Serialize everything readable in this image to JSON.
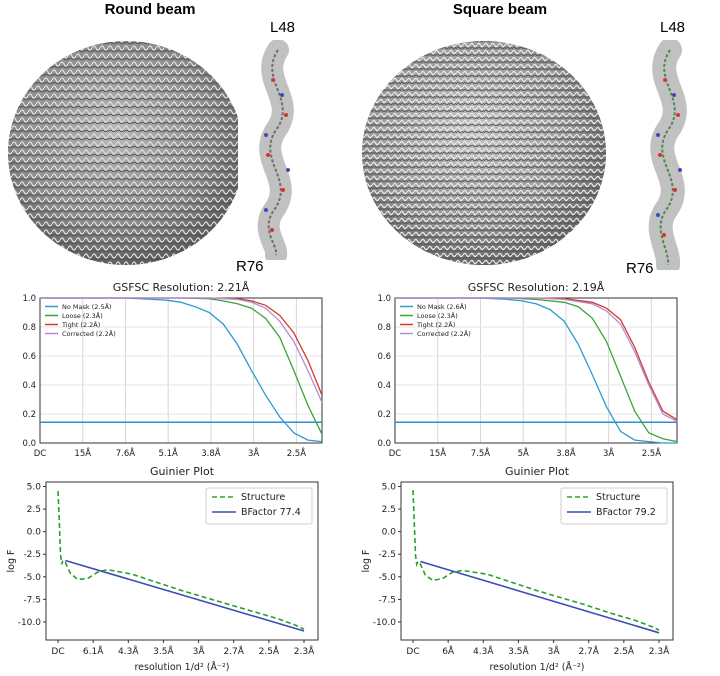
{
  "panels": [
    {
      "title": "Round beam",
      "top_label": "L48",
      "bottom_label": "R76"
    },
    {
      "title": "Square beam",
      "top_label": "L48",
      "bottom_label": "R76"
    }
  ],
  "colors": {
    "no_mask": "#2f9ad1",
    "loose": "#3aa53a",
    "tight": "#d33a2c",
    "corrected": "#b58cd6",
    "threshold": "#2f8fd0",
    "structure": "#2ca02c",
    "bfactor": "#3b4cb8"
  },
  "chart_data": [
    {
      "type": "line",
      "title": "GSFSC Resolution: 2.21Å",
      "ylim": [
        0,
        1.0
      ],
      "yticks": [
        "0.0",
        "0.2",
        "0.4",
        "0.6",
        "0.8",
        "1.0"
      ],
      "xticks": [
        "DC",
        "15Å",
        "7.6Å",
        "5.1Å",
        "3.8Å",
        "3Å",
        "2.5Å"
      ],
      "threshold": 0.143,
      "series": [
        {
          "name": "No Mask (2.5Å)",
          "x": [
            0,
            0.1,
            0.2,
            0.3,
            0.4,
            0.45,
            0.5,
            0.55,
            0.6,
            0.65,
            0.7,
            0.75,
            0.8,
            0.85,
            0.9,
            0.95,
            1.0
          ],
          "values": [
            1,
            1,
            1,
            1,
            0.99,
            0.985,
            0.97,
            0.94,
            0.9,
            0.82,
            0.68,
            0.5,
            0.33,
            0.18,
            0.07,
            0.02,
            0.01
          ]
        },
        {
          "name": "Loose (2.3Å)",
          "x": [
            0,
            0.1,
            0.2,
            0.3,
            0.4,
            0.5,
            0.6,
            0.65,
            0.7,
            0.75,
            0.8,
            0.85,
            0.9,
            0.95,
            1.0
          ],
          "values": [
            1,
            1,
            1,
            1,
            1,
            1,
            0.995,
            0.98,
            0.96,
            0.93,
            0.86,
            0.73,
            0.5,
            0.26,
            0.06
          ]
        },
        {
          "name": "Tight (2.2Å)",
          "x": [
            0,
            0.1,
            0.2,
            0.3,
            0.4,
            0.5,
            0.6,
            0.7,
            0.75,
            0.8,
            0.85,
            0.9,
            0.95,
            1.0
          ],
          "values": [
            1,
            1,
            1,
            1,
            1,
            1,
            1,
            0.995,
            0.98,
            0.95,
            0.88,
            0.76,
            0.57,
            0.33
          ]
        },
        {
          "name": "Corrected (2.2Å)",
          "x": [
            0,
            0.1,
            0.2,
            0.3,
            0.4,
            0.5,
            0.6,
            0.7,
            0.75,
            0.8,
            0.85,
            0.9,
            0.95,
            1.0
          ],
          "values": [
            1,
            1,
            1,
            1,
            1,
            1,
            1,
            0.99,
            0.97,
            0.93,
            0.84,
            0.7,
            0.5,
            0.28
          ]
        }
      ]
    },
    {
      "type": "line",
      "title": "GSFSC Resolution: 2.19Å",
      "ylim": [
        0,
        1.0
      ],
      "yticks": [
        "0.0",
        "0.2",
        "0.4",
        "0.6",
        "0.8",
        "1.0"
      ],
      "xticks": [
        "DC",
        "15Å",
        "7.5Å",
        "5Å",
        "3.8Å",
        "3Å",
        "2.5Å"
      ],
      "threshold": 0.143,
      "series": [
        {
          "name": "No Mask (2.6Å)",
          "x": [
            0,
            0.1,
            0.2,
            0.3,
            0.4,
            0.45,
            0.5,
            0.55,
            0.6,
            0.65,
            0.7,
            0.75,
            0.8,
            0.85,
            0.9,
            0.95,
            1.0
          ],
          "values": [
            1,
            1,
            1,
            1,
            0.99,
            0.98,
            0.96,
            0.92,
            0.84,
            0.68,
            0.47,
            0.25,
            0.08,
            0.02,
            0.01,
            0.0,
            0.0
          ]
        },
        {
          "name": "Loose (2.3Å)",
          "x": [
            0,
            0.1,
            0.2,
            0.3,
            0.4,
            0.5,
            0.6,
            0.65,
            0.7,
            0.75,
            0.8,
            0.85,
            0.9,
            0.95,
            1.0
          ],
          "values": [
            1,
            1,
            1,
            1,
            1,
            0.99,
            0.97,
            0.94,
            0.86,
            0.7,
            0.46,
            0.22,
            0.07,
            0.03,
            0.01
          ]
        },
        {
          "name": "Tight (2.2Å)",
          "x": [
            0,
            0.1,
            0.2,
            0.3,
            0.4,
            0.5,
            0.6,
            0.7,
            0.75,
            0.8,
            0.85,
            0.9,
            0.95,
            1.0
          ],
          "values": [
            1,
            1,
            1,
            1,
            1,
            1,
            0.995,
            0.97,
            0.93,
            0.85,
            0.66,
            0.42,
            0.22,
            0.16
          ]
        },
        {
          "name": "Corrected (2.2Å)",
          "x": [
            0,
            0.1,
            0.2,
            0.3,
            0.4,
            0.5,
            0.6,
            0.7,
            0.75,
            0.8,
            0.85,
            0.9,
            0.95,
            1.0
          ],
          "values": [
            1,
            1,
            1,
            1,
            1,
            1,
            0.99,
            0.96,
            0.91,
            0.82,
            0.63,
            0.4,
            0.2,
            0.15
          ]
        }
      ]
    },
    {
      "type": "line",
      "title": "Guinier Plot",
      "xlabel": "resolution 1/d² (Å⁻²)",
      "ylabel": "log F",
      "ylim": [
        -12,
        5.5
      ],
      "yticks": [
        5.0,
        2.5,
        0.0,
        -2.5,
        -5.0,
        -7.5,
        -10.0
      ],
      "xticks": [
        "DC",
        "6.1Å",
        "4.3Å",
        "3.5Å",
        "3Å",
        "2.7Å",
        "2.5Å",
        "2.3Å"
      ],
      "series": [
        {
          "name": "Structure",
          "x": [
            0,
            0.005,
            0.01,
            0.015,
            0.02,
            0.03,
            0.05,
            0.08,
            0.12,
            0.16,
            0.2,
            0.3,
            0.4,
            0.5,
            0.6,
            0.7,
            0.8,
            0.9,
            0.97,
            1.0
          ],
          "values": [
            4.5,
            1.5,
            -2.5,
            -3.6,
            -3.2,
            -3.4,
            -4.6,
            -5.3,
            -5.2,
            -4.5,
            -4.2,
            -4.7,
            -5.6,
            -6.5,
            -7.3,
            -8.1,
            -8.9,
            -9.7,
            -10.4,
            -10.8
          ]
        },
        {
          "name": "BFactor 77.4",
          "x": [
            0.03,
            1.0
          ],
          "values": [
            -3.2,
            -11.0
          ]
        }
      ]
    },
    {
      "type": "line",
      "title": "Guinier Plot",
      "xlabel": "resolution 1/d² (Å⁻²)",
      "ylabel": "log F",
      "ylim": [
        -12,
        5.5
      ],
      "yticks": [
        5.0,
        2.5,
        0.0,
        -2.5,
        -5.0,
        -7.5,
        -10.0
      ],
      "xticks": [
        "DC",
        "6Å",
        "4.3Å",
        "3.5Å",
        "3Å",
        "2.7Å",
        "2.5Å",
        "2.3Å"
      ],
      "series": [
        {
          "name": "Structure",
          "x": [
            0,
            0.005,
            0.01,
            0.015,
            0.02,
            0.03,
            0.05,
            0.08,
            0.12,
            0.16,
            0.2,
            0.3,
            0.4,
            0.5,
            0.6,
            0.7,
            0.8,
            0.9,
            0.97,
            1.0
          ],
          "values": [
            4.6,
            1.2,
            -2.6,
            -3.6,
            -3.3,
            -3.6,
            -4.8,
            -5.4,
            -5.2,
            -4.5,
            -4.3,
            -4.7,
            -5.6,
            -6.5,
            -7.3,
            -8.1,
            -9.0,
            -9.8,
            -10.5,
            -10.9
          ]
        },
        {
          "name": "BFactor 79.2",
          "x": [
            0.03,
            1.0
          ],
          "values": [
            -3.3,
            -11.2
          ]
        }
      ]
    }
  ]
}
